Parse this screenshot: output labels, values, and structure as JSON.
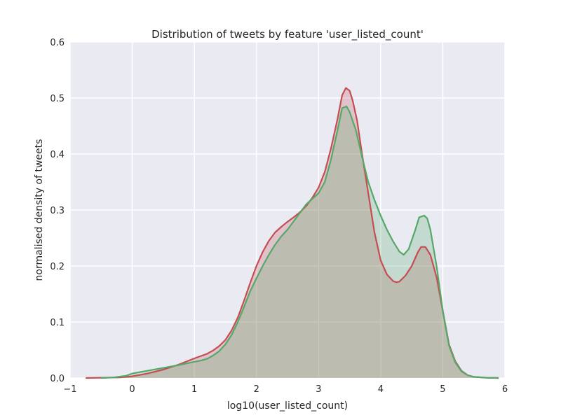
{
  "chart_data": {
    "type": "area",
    "title": "Distribution of tweets by feature 'user_listed_count'",
    "xlabel": "log10(user_listed_count)",
    "ylabel": "normalised density of tweets",
    "xlim": [
      -1,
      6
    ],
    "ylim": [
      0,
      0.6
    ],
    "xticks": [
      -1,
      0,
      1,
      2,
      3,
      4,
      5,
      6
    ],
    "xtick_labels": [
      "−1",
      "0",
      "1",
      "2",
      "3",
      "4",
      "5",
      "6"
    ],
    "yticks": [
      0,
      0.1,
      0.2,
      0.3,
      0.4,
      0.5,
      0.6
    ],
    "ytick_labels": [
      "0.0",
      "0.1",
      "0.2",
      "0.3",
      "0.4",
      "0.5",
      "0.6"
    ],
    "grid": true,
    "background": "#eaeaf2",
    "series": [
      {
        "color": "#c44e52",
        "fill": "#e3c0c8",
        "points": [
          [
            -0.75,
            0.0
          ],
          [
            -0.5,
            0.0005
          ],
          [
            -0.2,
            0.001
          ],
          [
            0.0,
            0.003
          ],
          [
            0.25,
            0.008
          ],
          [
            0.5,
            0.015
          ],
          [
            0.75,
            0.024
          ],
          [
            1.0,
            0.035
          ],
          [
            1.2,
            0.043
          ],
          [
            1.3,
            0.049
          ],
          [
            1.4,
            0.057
          ],
          [
            1.5,
            0.068
          ],
          [
            1.6,
            0.085
          ],
          [
            1.7,
            0.108
          ],
          [
            1.8,
            0.138
          ],
          [
            1.9,
            0.17
          ],
          [
            2.0,
            0.2
          ],
          [
            2.1,
            0.225
          ],
          [
            2.2,
            0.245
          ],
          [
            2.3,
            0.26
          ],
          [
            2.4,
            0.27
          ],
          [
            2.5,
            0.279
          ],
          [
            2.6,
            0.287
          ],
          [
            2.7,
            0.296
          ],
          [
            2.8,
            0.307
          ],
          [
            2.9,
            0.322
          ],
          [
            3.0,
            0.34
          ],
          [
            3.1,
            0.368
          ],
          [
            3.2,
            0.41
          ],
          [
            3.3,
            0.46
          ],
          [
            3.38,
            0.505
          ],
          [
            3.44,
            0.518
          ],
          [
            3.5,
            0.513
          ],
          [
            3.55,
            0.495
          ],
          [
            3.62,
            0.46
          ],
          [
            3.7,
            0.4
          ],
          [
            3.8,
            0.33
          ],
          [
            3.9,
            0.26
          ],
          [
            4.0,
            0.21
          ],
          [
            4.1,
            0.185
          ],
          [
            4.2,
            0.173
          ],
          [
            4.25,
            0.171
          ],
          [
            4.3,
            0.172
          ],
          [
            4.4,
            0.183
          ],
          [
            4.5,
            0.2
          ],
          [
            4.6,
            0.225
          ],
          [
            4.65,
            0.234
          ],
          [
            4.72,
            0.234
          ],
          [
            4.8,
            0.22
          ],
          [
            4.9,
            0.18
          ],
          [
            5.0,
            0.12
          ],
          [
            5.1,
            0.06
          ],
          [
            5.2,
            0.03
          ],
          [
            5.3,
            0.013
          ],
          [
            5.4,
            0.005
          ],
          [
            5.5,
            0.002
          ],
          [
            5.7,
            0.0005
          ],
          [
            5.9,
            0.0
          ]
        ]
      },
      {
        "color": "#55a868",
        "fill": "#c5e0d2",
        "points": [
          [
            -0.5,
            0.0
          ],
          [
            -0.3,
            0.001
          ],
          [
            -0.1,
            0.004
          ],
          [
            0.0,
            0.008
          ],
          [
            0.25,
            0.013
          ],
          [
            0.5,
            0.018
          ],
          [
            0.75,
            0.023
          ],
          [
            1.0,
            0.029
          ],
          [
            1.1,
            0.031
          ],
          [
            1.2,
            0.034
          ],
          [
            1.3,
            0.04
          ],
          [
            1.4,
            0.048
          ],
          [
            1.5,
            0.06
          ],
          [
            1.6,
            0.077
          ],
          [
            1.7,
            0.1
          ],
          [
            1.8,
            0.127
          ],
          [
            1.9,
            0.155
          ],
          [
            2.0,
            0.178
          ],
          [
            2.1,
            0.2
          ],
          [
            2.2,
            0.22
          ],
          [
            2.3,
            0.238
          ],
          [
            2.4,
            0.253
          ],
          [
            2.5,
            0.265
          ],
          [
            2.6,
            0.28
          ],
          [
            2.7,
            0.295
          ],
          [
            2.8,
            0.31
          ],
          [
            2.9,
            0.32
          ],
          [
            3.0,
            0.33
          ],
          [
            3.1,
            0.35
          ],
          [
            3.2,
            0.39
          ],
          [
            3.3,
            0.44
          ],
          [
            3.38,
            0.482
          ],
          [
            3.45,
            0.485
          ],
          [
            3.5,
            0.475
          ],
          [
            3.6,
            0.443
          ],
          [
            3.7,
            0.395
          ],
          [
            3.8,
            0.35
          ],
          [
            3.9,
            0.318
          ],
          [
            4.0,
            0.29
          ],
          [
            4.1,
            0.265
          ],
          [
            4.2,
            0.244
          ],
          [
            4.3,
            0.226
          ],
          [
            4.37,
            0.22
          ],
          [
            4.45,
            0.23
          ],
          [
            4.55,
            0.262
          ],
          [
            4.62,
            0.287
          ],
          [
            4.7,
            0.29
          ],
          [
            4.75,
            0.285
          ],
          [
            4.8,
            0.265
          ],
          [
            4.9,
            0.2
          ],
          [
            5.0,
            0.12
          ],
          [
            5.1,
            0.058
          ],
          [
            5.2,
            0.028
          ],
          [
            5.3,
            0.012
          ],
          [
            5.4,
            0.005
          ],
          [
            5.5,
            0.002
          ],
          [
            5.7,
            0.0005
          ],
          [
            5.9,
            0.0
          ]
        ]
      }
    ]
  }
}
